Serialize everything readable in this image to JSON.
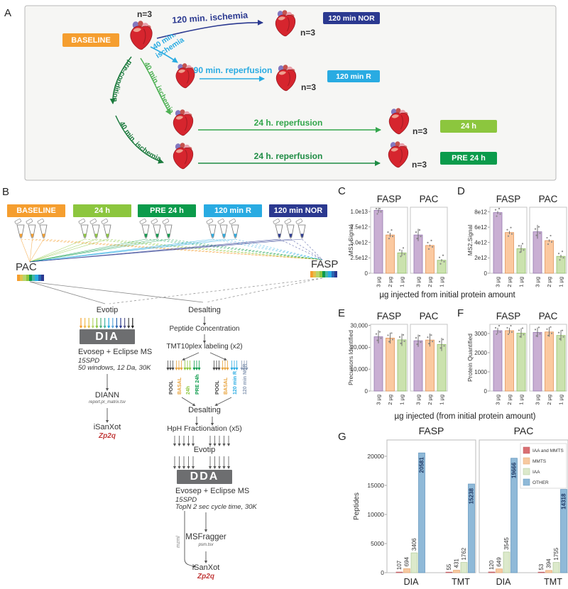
{
  "colors": {
    "orange": "#F59E2F",
    "light_green": "#8CC63E",
    "dark_green": "#0B9B4B",
    "light_blue": "#29ABE2",
    "navy": "#2B3990",
    "mid_green": "#4FB155",
    "row_green": "#33A64C",
    "row_green2": "#1E8C44",
    "pre_green": "#1B7A3D",
    "bar_fill": [
      "#C9AFD3",
      "#FBC9A0",
      "#CBE2AE"
    ],
    "bar_edge": [
      "#9678B0",
      "#E0955C",
      "#93BF6B"
    ],
    "g_fill": [
      "#D96F72",
      "#F7C9A0",
      "#DCE9CB",
      "#8FB9D8"
    ],
    "g_edge": [
      "#C05A60",
      "#E5A873",
      "#AFC89A",
      "#5E93BB"
    ],
    "g_label_other": "#1F3864",
    "box_gray": "#6D6E70",
    "red_text": "#C13A3A"
  },
  "panelA": {
    "label": "A",
    "n3": "n=3",
    "baseline": "BASELINE",
    "arrow_120_ischemia": "120 min. ischemia",
    "arrow_40_line1": "40 min.",
    "arrow_40_line2": "ischemia",
    "arrow_90_reperfusion": "90 min. reperfusion",
    "precondition": "pre-condition",
    "arrow_40_mid": "40 min. ischemia",
    "arrow_40_bottom": "40 min. ischemia",
    "arrow_24h_1": "24 h. reperfusion",
    "arrow_24h_2": "24 h. reperfusion",
    "badge_nor": "120 min NOR",
    "badge_r": "120 min R",
    "badge_24h": "24 h",
    "badge_pre24h": "PRE 24 h"
  },
  "panelB": {
    "label": "B",
    "groups": [
      {
        "label": "BASELINE",
        "color": "#F59E2F"
      },
      {
        "label": "24 h",
        "color": "#8CC63E"
      },
      {
        "label": "PRE 24 h",
        "color": "#0B9B4B"
      },
      {
        "label": "120 min R",
        "color": "#29ABE2"
      },
      {
        "label": "120 min NOR",
        "color": "#2B3990"
      }
    ],
    "pac": "PAC",
    "fasp": "FASP",
    "barcode_colors": [
      "#F59E2F",
      "#E3C14C",
      "#B8D46A",
      "#8CC63E",
      "#0B9B4B",
      "#45B5A6",
      "#29ABE2",
      "#2B66B2",
      "#2B3990"
    ],
    "dia": {
      "evotip": "Evotip",
      "arrow_colors": [
        "#F59E2F",
        "#F2B94C",
        "#E3C14C",
        "#B8D46A",
        "#8CC63E",
        "#4CAF7C",
        "#45B5A6",
        "#29ABE2",
        "#5FA8DC",
        "#2B66B2",
        "#2B3990",
        "#5A5A8C",
        "#444444",
        "#222222"
      ],
      "box": "DIA",
      "ms": "Evosep + Eclipse MS",
      "speed": "15SPD",
      "params": "50 windows, 12 Da, 30K",
      "tool": "DIANN",
      "file": "report.pr_matrix.tsv",
      "isanxot": "iSanXot",
      "zp2q": "Zp2q"
    },
    "dda": {
      "desalting1": "Desalting",
      "peptide": "Peptide Concentration",
      "tmt": "TMT10plex labeling (x2)",
      "plex1": [
        {
          "label": "POOL",
          "color": "#444444"
        },
        {
          "label": "BASAL",
          "color": "#E8A33D"
        },
        {
          "label": "24h",
          "color": "#8CC63E"
        },
        {
          "label": "PRE 24h",
          "color": "#0B9B4B"
        }
      ],
      "plex2": [
        {
          "label": "POOL",
          "color": "#444444"
        },
        {
          "label": "BASAL",
          "color": "#E8A33D"
        },
        {
          "label": "120 min R",
          "color": "#29ABE2"
        },
        {
          "label": "120 min NOR",
          "color": "#8A9BB5"
        }
      ],
      "desalting2": "Desalting",
      "hph": "HpH Fractionation (x5)",
      "evotip": "Evotip",
      "box": "DDA",
      "ms": "Evosep + Eclipse MS",
      "speed": "15SPD",
      "params": "TopN 2 sec cycle time, 30K",
      "mzml": "mzml",
      "tool": "MSFragger",
      "file": "psm.tsv",
      "isanxot": "iSanXot",
      "zp2q": "Zp2q"
    }
  },
  "chart_data": [
    {
      "id": "C",
      "type": "bar",
      "letter": "C",
      "panel_titles": [
        "FASP",
        "PAC"
      ],
      "ylabel": "MS1.Signal",
      "categories": [
        "3 µg",
        "2 µg",
        "1 µg"
      ],
      "series": [
        {
          "name": "FASP",
          "values": [
            10200000000000.0,
            6200000000000.0,
            3300000000000.0
          ],
          "errors": [
            400000000000.0,
            350000000000.0,
            500000000000.0
          ]
        },
        {
          "name": "PAC",
          "values": [
            6200000000000.0,
            4500000000000.0,
            2100000000000.0
          ],
          "errors": [
            1000000000000.0,
            150000000000.0,
            200000000000.0
          ]
        }
      ],
      "yticks": [
        {
          "label": "1.0e13",
          "v": 10000000000000.0
        },
        {
          "label": "7.5e12",
          "v": 7500000000000.0
        },
        {
          "label": "5.0e12",
          "v": 5000000000000.0
        },
        {
          "label": "2.5e12",
          "v": 2500000000000.0
        },
        {
          "label": "0",
          "v": 0
        }
      ],
      "ylim": [
        0,
        10700000000000.0
      ],
      "xlabel": "µg injected from initial protein amount"
    },
    {
      "id": "D",
      "type": "bar",
      "letter": "D",
      "panel_titles": [
        "FASP",
        "PAC"
      ],
      "ylabel": "MS2.Signal",
      "categories": [
        "3 µg",
        "2 µg",
        "1 µg"
      ],
      "series": [
        {
          "name": "FASP",
          "values": [
            7900000000000.0,
            5300000000000.0,
            3200000000000.0
          ],
          "errors": [
            200000000000.0,
            200000000000.0,
            500000000000.0
          ]
        },
        {
          "name": "PAC",
          "values": [
            5400000000000.0,
            4250000000000.0,
            2200000000000.0
          ],
          "errors": [
            900000000000.0,
            150000000000.0,
            200000000000.0
          ]
        }
      ],
      "yticks": [
        {
          "label": "8e12",
          "v": 8000000000000.0
        },
        {
          "label": "6e12",
          "v": 6000000000000.0
        },
        {
          "label": "4e12",
          "v": 4000000000000.0
        },
        {
          "label": "2e12",
          "v": 2000000000000.0
        },
        {
          "label": "0",
          "v": 0
        }
      ],
      "ylim": [
        0,
        8600000000000.0
      ],
      "xlabel": ""
    },
    {
      "id": "E",
      "type": "bar",
      "letter": "E",
      "panel_titles": [
        "FASP",
        "PAC"
      ],
      "ylabel": "Precursors Identified",
      "categories": [
        "3 µg",
        "2 µg",
        "1 µg"
      ],
      "series": [
        {
          "name": "FASP",
          "values": [
            24800,
            24200,
            23400
          ],
          "errors": [
            3000,
            2500,
            2800
          ]
        },
        {
          "name": "PAC",
          "values": [
            23000,
            23300,
            21300
          ],
          "errors": [
            2800,
            3000,
            3000
          ]
        }
      ],
      "yticks": [
        {
          "label": "30,000",
          "v": 30000
        },
        {
          "label": "20,000",
          "v": 20000
        },
        {
          "label": "10,000",
          "v": 10000
        },
        {
          "label": "0",
          "v": 0
        }
      ],
      "ylim": [
        0,
        30500
      ],
      "xlabel": "µg injected (from initial protein amount)"
    },
    {
      "id": "F",
      "type": "bar",
      "letter": "F",
      "panel_titles": [
        "FASP",
        "PAC"
      ],
      "ylabel": "Protein Quantified",
      "categories": [
        "3 µg",
        "2 µg",
        "1 µg"
      ],
      "series": [
        {
          "name": "FASP",
          "values": [
            3150,
            3150,
            3020
          ],
          "errors": [
            150,
            150,
            250
          ]
        },
        {
          "name": "PAC",
          "values": [
            3060,
            3080,
            2900
          ],
          "errors": [
            250,
            250,
            280
          ]
        }
      ],
      "yticks": [
        {
          "label": "3000",
          "v": 3000
        },
        {
          "label": "2000",
          "v": 2000
        },
        {
          "label": "1000",
          "v": 1000
        },
        {
          "label": "0",
          "v": 0
        }
      ],
      "ylim": [
        0,
        3480
      ],
      "xlabel": ""
    },
    {
      "id": "G",
      "type": "grouped-bar",
      "letter": "G",
      "panel_titles": [
        "FASP",
        "PAC"
      ],
      "ylabel": "Peptides",
      "categories": [
        "DIA",
        "TMT"
      ],
      "legend": [
        "IAA and MMTS",
        "MMTS",
        "IAA",
        "OTHER"
      ],
      "values": {
        "FASP": {
          "DIA": [
            107,
            694,
            3406,
            20581
          ],
          "TMT": [
            55,
            431,
            1762,
            15238
          ]
        },
        "PAC": {
          "DIA": [
            120,
            649,
            3545,
            19666
          ],
          "TMT": [
            53,
            394,
            1755,
            14318
          ]
        }
      },
      "yticks": [
        {
          "label": "20000",
          "v": 20000
        },
        {
          "label": "15000",
          "v": 15000
        },
        {
          "label": "10000",
          "v": 10000
        },
        {
          "label": "5000",
          "v": 5000
        },
        {
          "label": "0",
          "v": 0
        }
      ],
      "ylim": [
        0,
        22800
      ]
    }
  ]
}
